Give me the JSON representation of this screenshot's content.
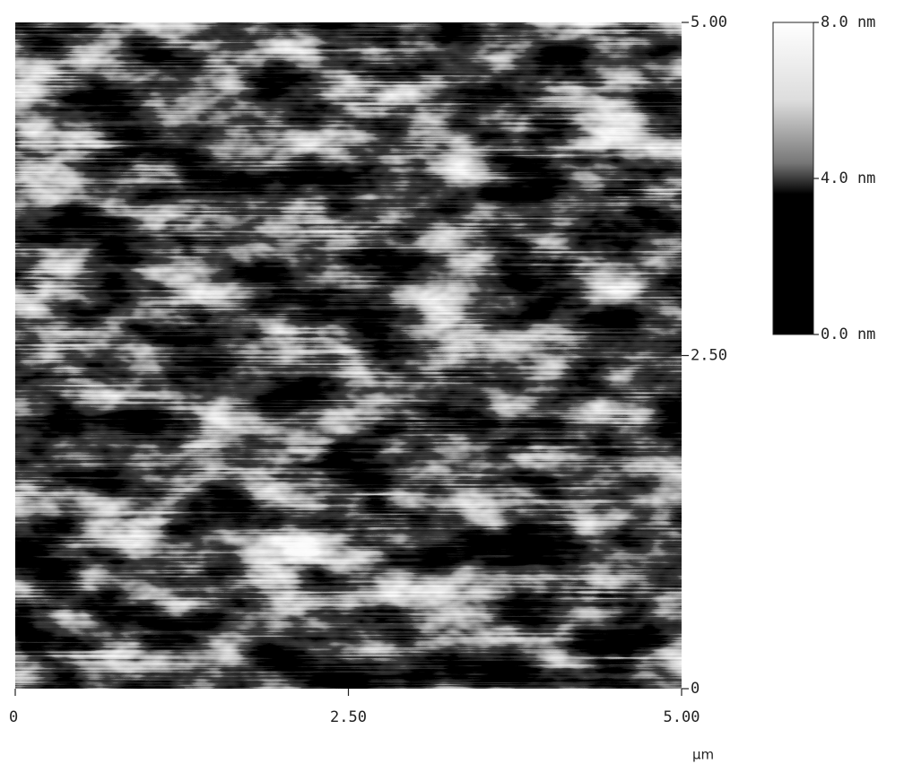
{
  "chart_data": {
    "type": "image",
    "x_label": "µm",
    "xlim": [
      0,
      5
    ],
    "xticks": [
      0,
      {
        "value": 2.5,
        "label": "2.50"
      },
      {
        "value": 5,
        "label": "5.00"
      }
    ],
    "ylim": [
      0,
      5
    ],
    "yticks": [
      0,
      {
        "value": 2.5,
        "label": "2.50"
      },
      {
        "value": 5,
        "label": "5.00"
      }
    ],
    "colorbar": {
      "lim": [
        0,
        8
      ],
      "ticks": [
        {
          "value": 0,
          "label": "0.0 nm"
        },
        {
          "value": 4,
          "label": "4.0 nm"
        },
        {
          "value": 8,
          "label": "8.0 nm"
        }
      ]
    }
  }
}
